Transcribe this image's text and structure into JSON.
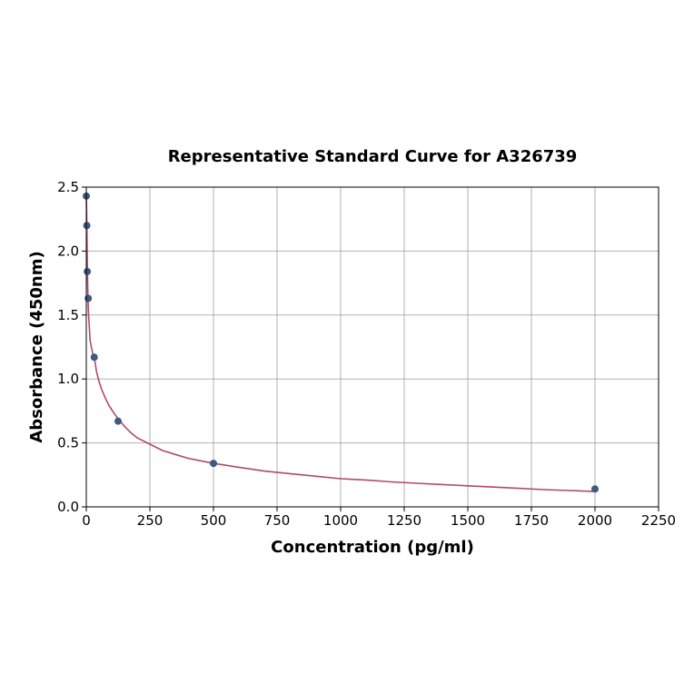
{
  "chart_data": {
    "type": "scatter",
    "title": "Representative Standard Curve for A326739",
    "xlabel": "Concentration (pg/ml)",
    "ylabel": "Absorbance (450nm)",
    "xlim": [
      0,
      2250
    ],
    "ylim": [
      0,
      2.5
    ],
    "xticks": [
      "0",
      "250",
      "500",
      "750",
      "1000",
      "1250",
      "1500",
      "1750",
      "2000",
      "2250"
    ],
    "yticks": [
      "0.0",
      "0.5",
      "1.0",
      "1.5",
      "2.0",
      "2.5"
    ],
    "grid": true,
    "legend": "none",
    "series": [
      {
        "kind": "points",
        "color": "#3d5a80",
        "x": [
          0,
          1.95,
          3.9,
          7.8,
          31.25,
          125,
          500,
          2000
        ],
        "y": [
          2.43,
          2.2,
          1.84,
          1.63,
          1.17,
          0.67,
          0.34,
          0.14
        ]
      },
      {
        "kind": "fitted-curve",
        "color": "#b04a6b",
        "x": [
          0,
          2,
          4,
          6,
          8,
          10,
          12,
          15,
          20,
          25,
          31.25,
          40,
          50,
          60,
          75,
          90,
          100,
          110,
          125,
          150,
          175,
          200,
          250,
          300,
          350,
          400,
          450,
          500,
          600,
          700,
          800,
          900,
          1000,
          1100,
          1200,
          1300,
          1400,
          1500,
          1600,
          1700,
          1800,
          1900,
          2000
        ],
        "y": [
          2.45,
          2.21,
          1.9,
          1.68,
          1.55,
          1.47,
          1.4,
          1.3,
          1.25,
          1.2,
          1.17,
          1.06,
          0.98,
          0.92,
          0.85,
          0.79,
          0.76,
          0.73,
          0.69,
          0.63,
          0.58,
          0.54,
          0.49,
          0.44,
          0.41,
          0.38,
          0.36,
          0.34,
          0.31,
          0.28,
          0.26,
          0.24,
          0.22,
          0.21,
          0.195,
          0.185,
          0.175,
          0.165,
          0.155,
          0.145,
          0.135,
          0.128,
          0.12
        ]
      }
    ]
  }
}
